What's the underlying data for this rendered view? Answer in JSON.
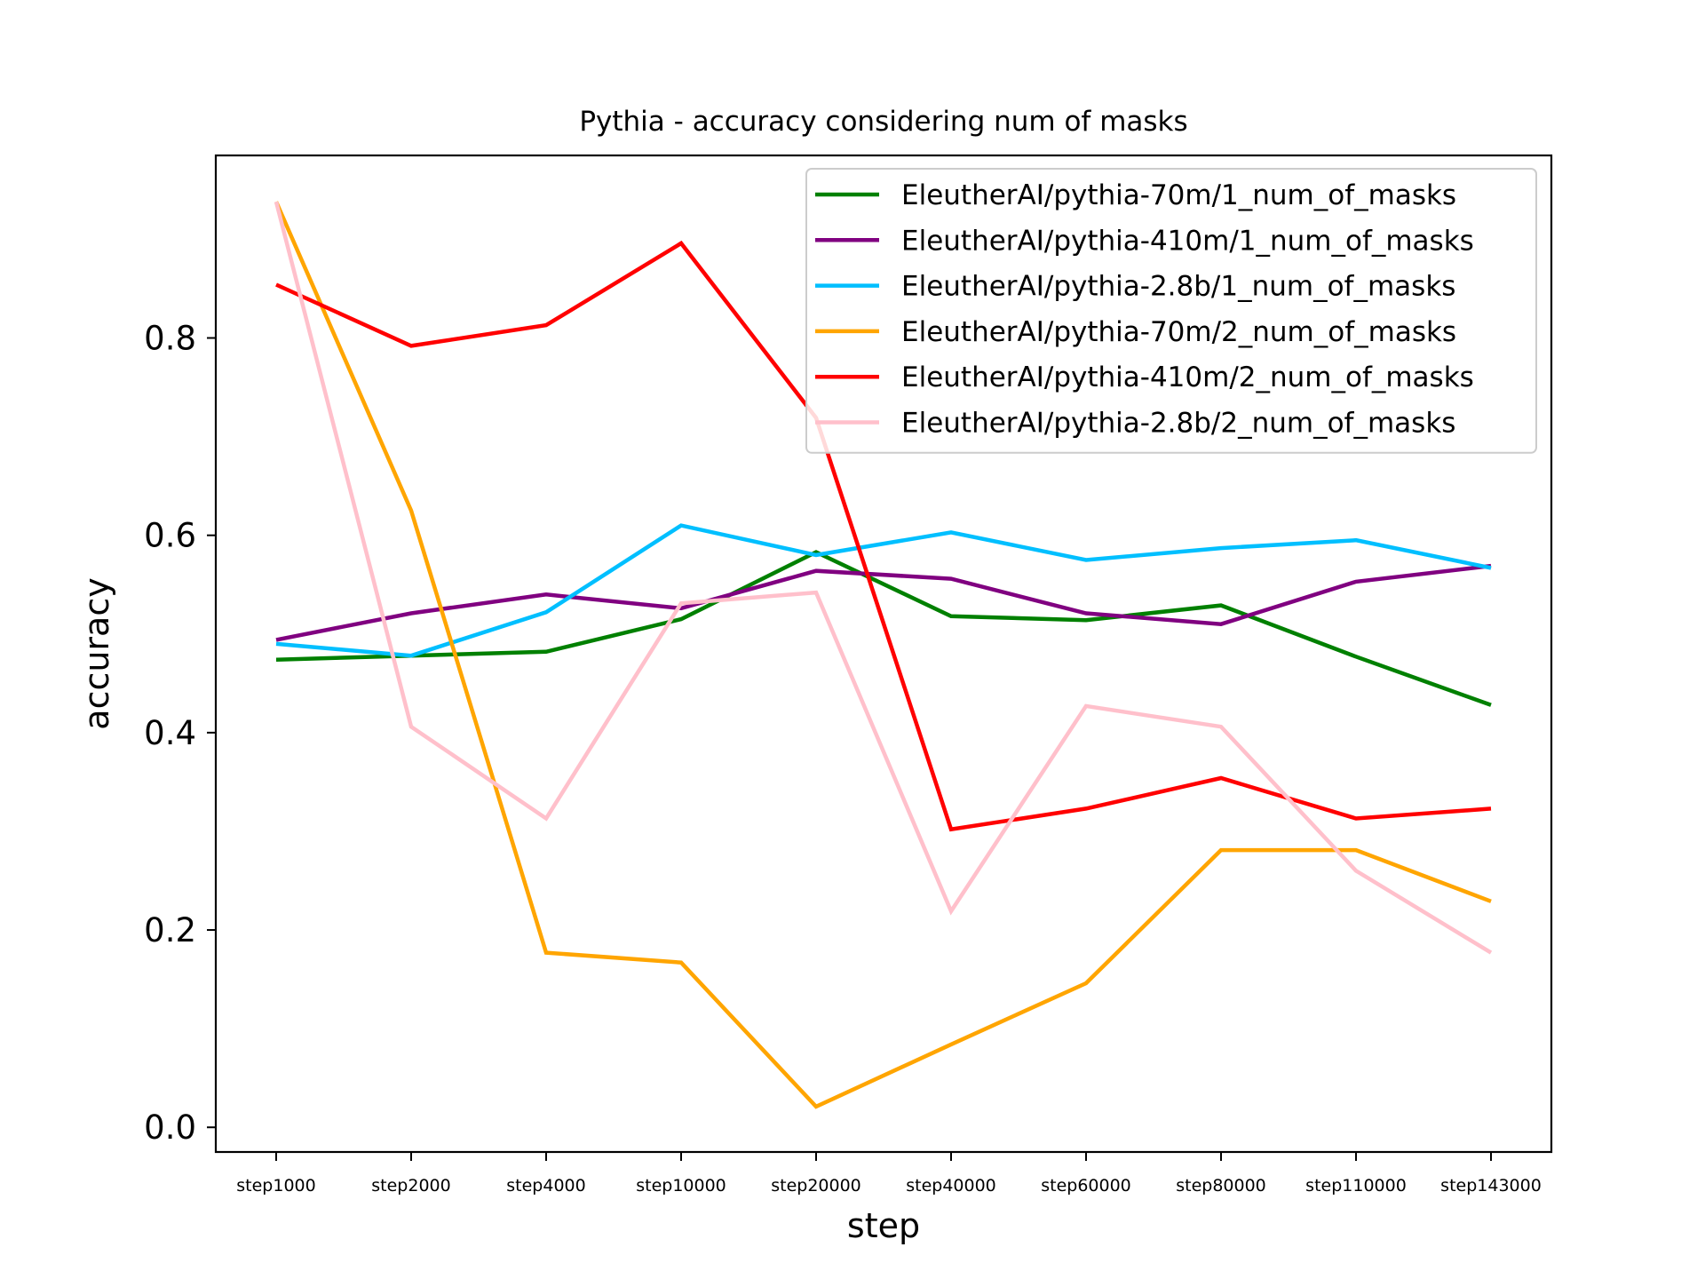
{
  "chart_data": {
    "type": "line",
    "title": "Pythia - accuracy considering num of masks",
    "xlabel": "step",
    "ylabel": "accuracy",
    "categories": [
      "step1000",
      "step2000",
      "step4000",
      "step10000",
      "step20000",
      "step40000",
      "step60000",
      "step80000",
      "step110000",
      "step143000"
    ],
    "ylim": [
      -0.025,
      0.985
    ],
    "yticks": [
      "0.0",
      "0.2",
      "0.4",
      "0.6",
      "0.8"
    ],
    "grid": false,
    "legend_position": "upper right",
    "series": [
      {
        "name": "EleutherAI/pythia-70m/1_num_of_masks",
        "color": "#008000",
        "values": [
          0.474,
          0.478,
          0.482,
          0.515,
          0.583,
          0.518,
          0.514,
          0.529,
          0.477,
          0.428
        ]
      },
      {
        "name": "EleutherAI/pythia-410m/1_num_of_masks",
        "color": "#800080",
        "values": [
          0.494,
          0.521,
          0.54,
          0.526,
          0.564,
          0.556,
          0.521,
          0.51,
          0.553,
          0.569
        ]
      },
      {
        "name": "EleutherAI/pythia-2.8b/1_num_of_masks",
        "color": "#00bfff",
        "values": [
          0.49,
          0.478,
          0.522,
          0.61,
          0.58,
          0.603,
          0.575,
          0.587,
          0.595,
          0.567
        ]
      },
      {
        "name": "EleutherAI/pythia-70m/2_num_of_masks",
        "color": "#ffa500",
        "values": [
          0.938,
          0.625,
          0.177,
          0.167,
          0.021,
          0.084,
          0.146,
          0.281,
          0.281,
          0.229
        ]
      },
      {
        "name": "EleutherAI/pythia-410m/2_num_of_masks",
        "color": "#ff0000",
        "values": [
          0.854,
          0.792,
          0.813,
          0.896,
          0.719,
          0.302,
          0.323,
          0.354,
          0.313,
          0.323
        ]
      },
      {
        "name": "EleutherAI/pythia-2.8b/2_num_of_masks",
        "color": "#ffc0cb",
        "values": [
          0.938,
          0.406,
          0.313,
          0.531,
          0.542,
          0.219,
          0.427,
          0.406,
          0.26,
          0.177
        ]
      }
    ]
  }
}
